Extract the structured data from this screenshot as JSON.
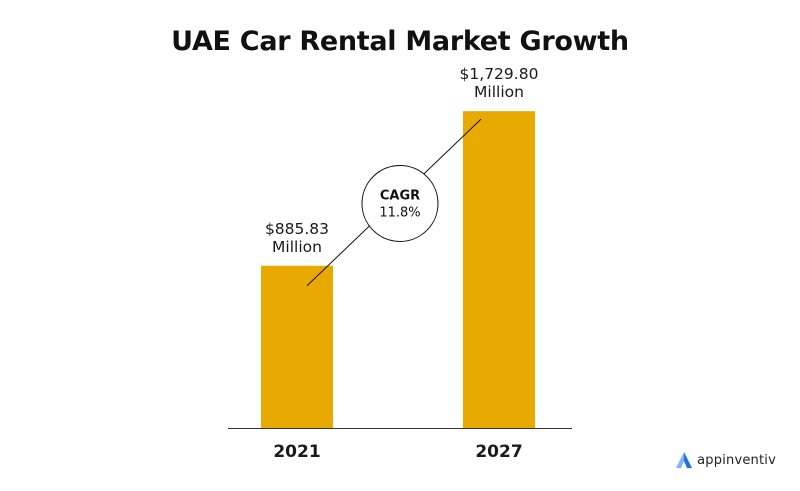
{
  "chart_data": {
    "type": "bar",
    "title": "UAE Car Rental Market Growth",
    "categories": [
      "2021",
      "2027"
    ],
    "values": [
      885.83,
      1729.8
    ],
    "value_labels": [
      [
        "$885.83",
        "Million"
      ],
      [
        "$1,729.80",
        "Million"
      ]
    ],
    "unit": "Million",
    "annotation": {
      "label": "CAGR",
      "value": "11.8%"
    },
    "xlabel": "",
    "ylabel": "",
    "ylim": [
      0,
      1900
    ],
    "grid": false,
    "legend": "none",
    "colors": {
      "bar": "#E8AA00",
      "axis": "#333333",
      "line": "#111111"
    }
  },
  "brand": {
    "name": "appinventiv",
    "icon": "appinventiv-logo-icon"
  }
}
